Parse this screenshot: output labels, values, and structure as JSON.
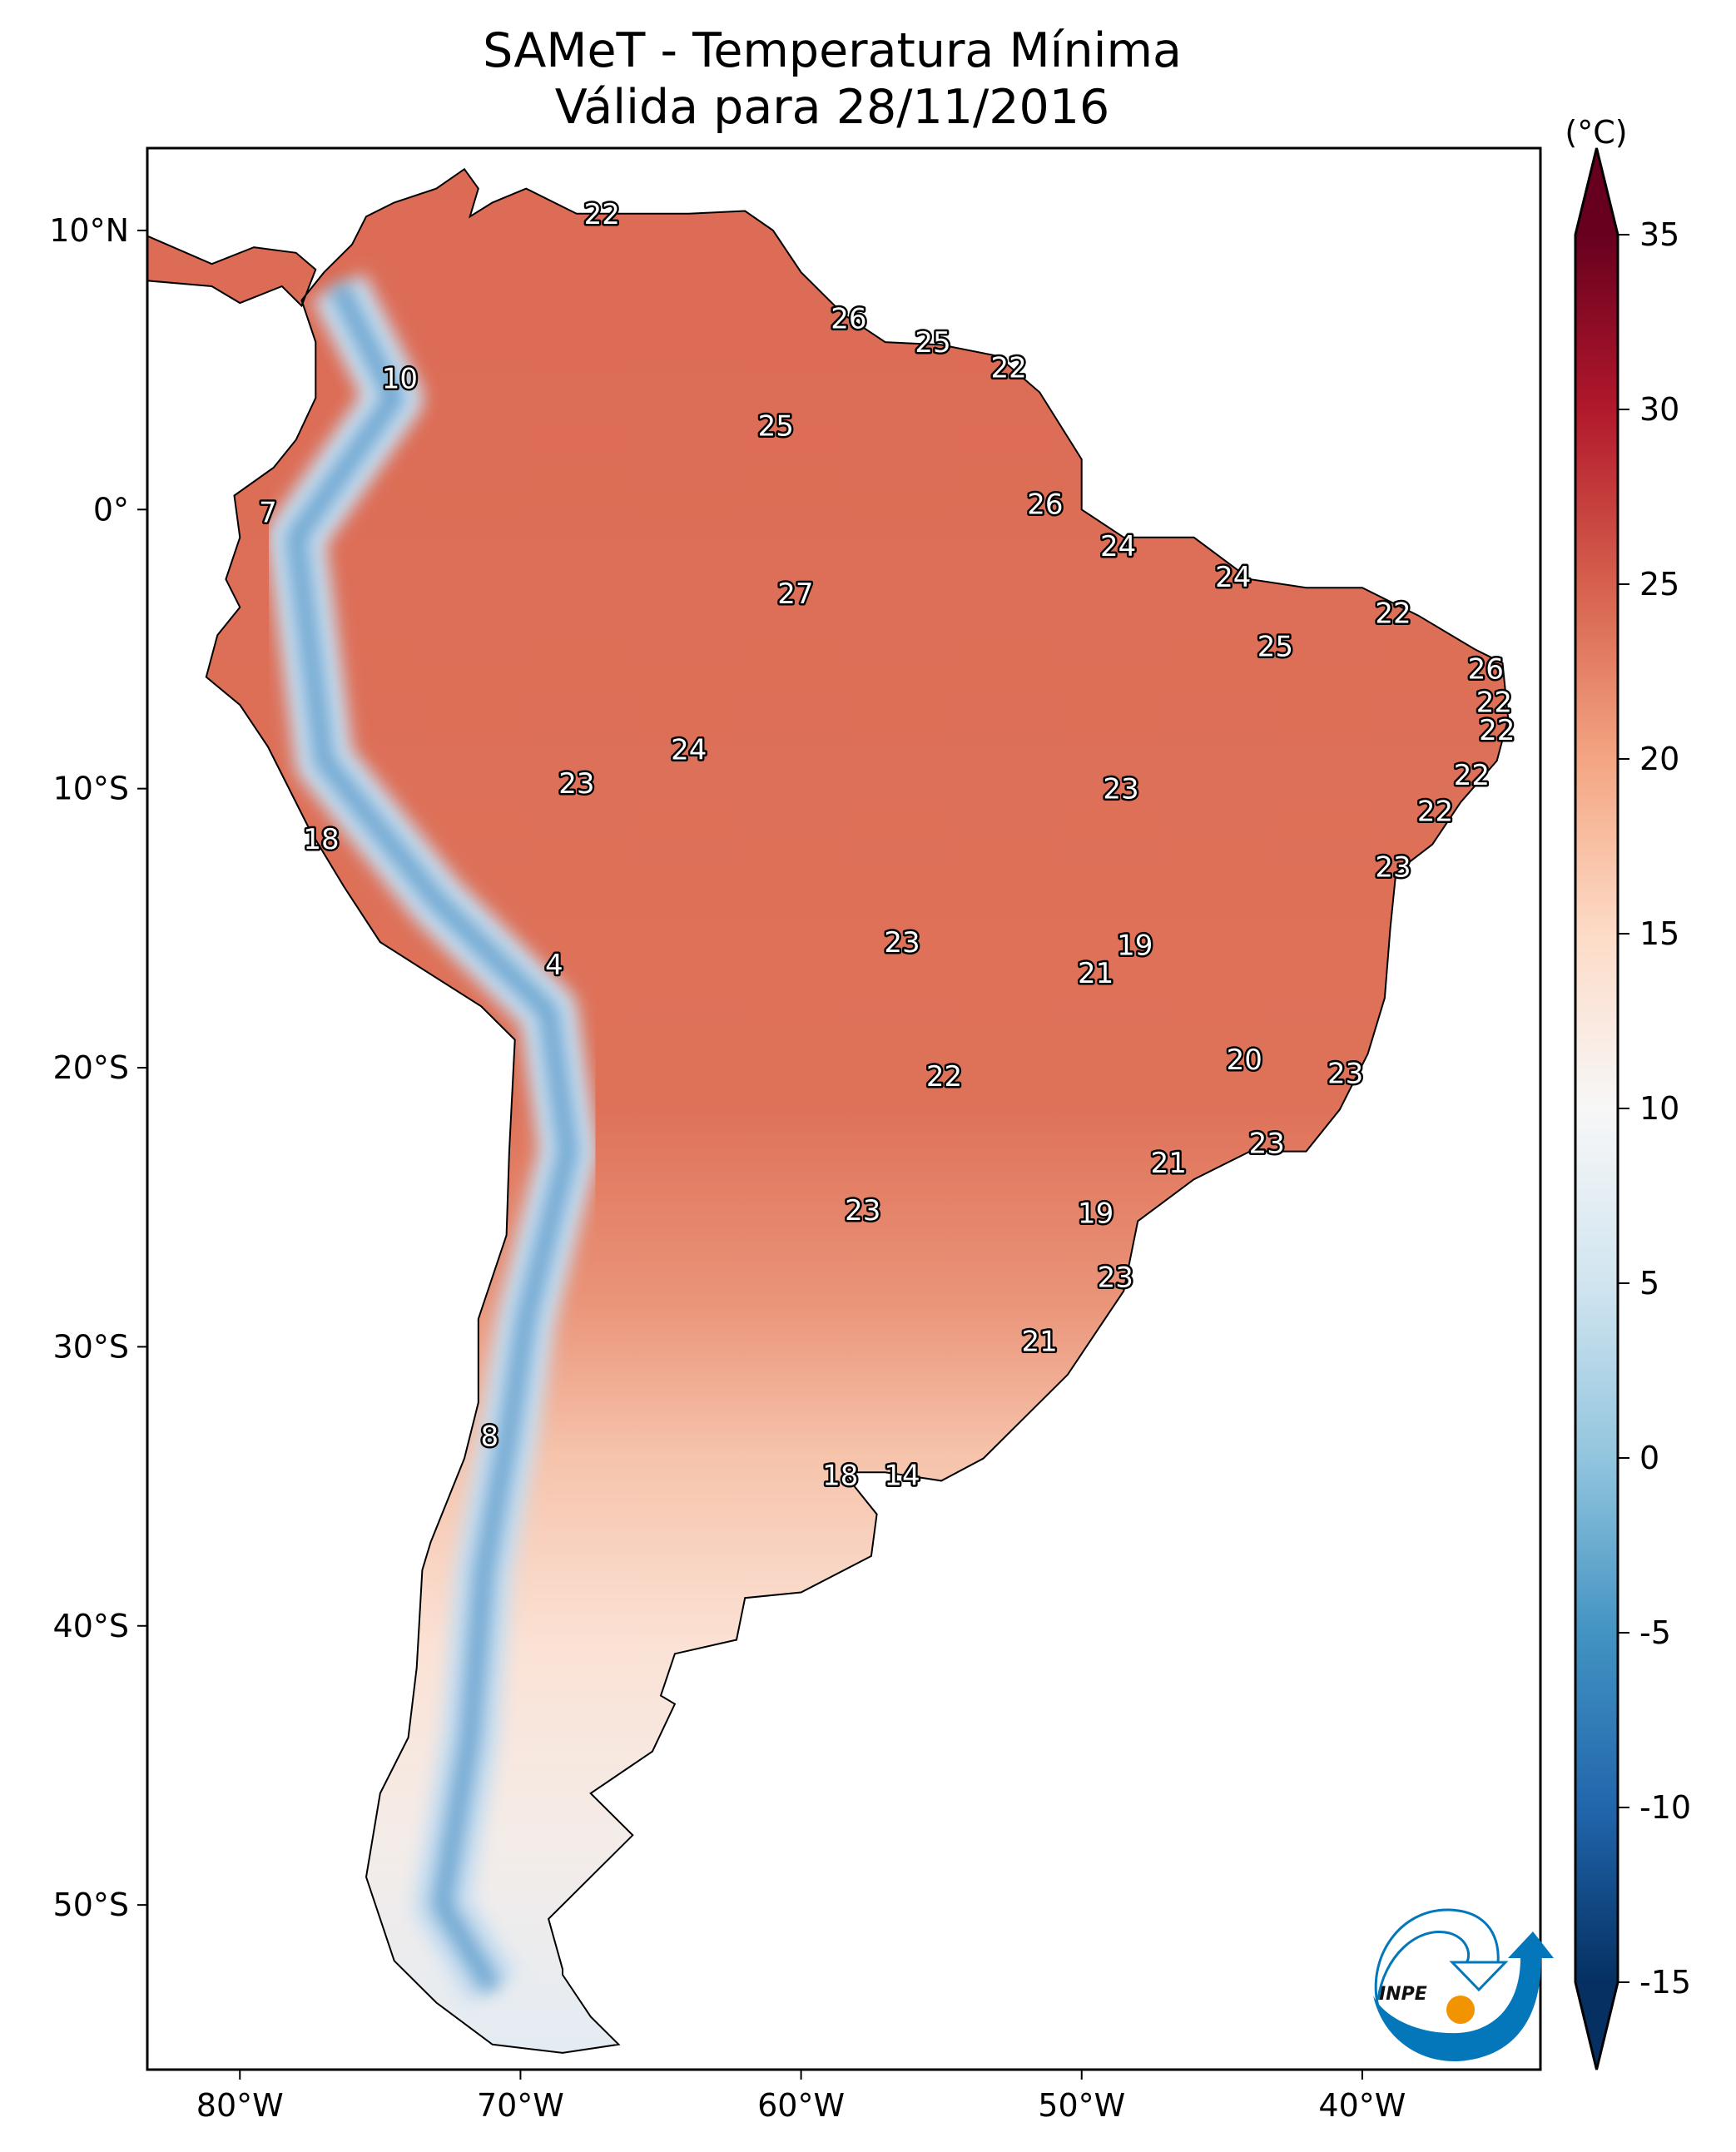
{
  "title": {
    "line1": "SAMeT - Temperatura Mínima",
    "line2": "Válida para 28/11/2016"
  },
  "map": {
    "extent": {
      "lon": [
        -83.3,
        -33.65
      ],
      "lat": [
        -55.9,
        12.95
      ]
    },
    "lon_ticks": [
      {
        "value": -80,
        "label": "80°W"
      },
      {
        "value": -70,
        "label": "70°W"
      },
      {
        "value": -60,
        "label": "60°W"
      },
      {
        "value": -50,
        "label": "50°W"
      },
      {
        "value": -40,
        "label": "40°W"
      }
    ],
    "lat_ticks": [
      {
        "value": 10,
        "label": "10°N"
      },
      {
        "value": 0,
        "label": "0°"
      },
      {
        "value": -10,
        "label": "10°S"
      },
      {
        "value": -20,
        "label": "20°S"
      },
      {
        "value": -30,
        "label": "30°S"
      },
      {
        "value": -40,
        "label": "40°S"
      },
      {
        "value": -50,
        "label": "50°S"
      }
    ],
    "stations": [
      {
        "lon": -67.1,
        "lat": 10.6,
        "value": "22"
      },
      {
        "lon": -58.3,
        "lat": 6.85,
        "value": "26"
      },
      {
        "lon": -55.3,
        "lat": 6.0,
        "value": "25"
      },
      {
        "lon": -52.6,
        "lat": 5.1,
        "value": "22"
      },
      {
        "lon": -74.3,
        "lat": 4.7,
        "value": "10"
      },
      {
        "lon": -60.9,
        "lat": 3.0,
        "value": "25"
      },
      {
        "lon": -51.3,
        "lat": 0.2,
        "value": "26"
      },
      {
        "lon": -79.0,
        "lat": -0.1,
        "value": "7"
      },
      {
        "lon": -48.7,
        "lat": -1.3,
        "value": "24"
      },
      {
        "lon": -44.6,
        "lat": -2.4,
        "value": "24"
      },
      {
        "lon": -60.2,
        "lat": -3.0,
        "value": "27"
      },
      {
        "lon": -38.9,
        "lat": -3.7,
        "value": "22"
      },
      {
        "lon": -43.1,
        "lat": -4.9,
        "value": "25"
      },
      {
        "lon": -35.6,
        "lat": -5.7,
        "value": "26"
      },
      {
        "lon": -35.3,
        "lat": -6.9,
        "value": "22"
      },
      {
        "lon": -35.2,
        "lat": -7.9,
        "value": "22"
      },
      {
        "lon": -64.0,
        "lat": -8.6,
        "value": "24"
      },
      {
        "lon": -36.1,
        "lat": -9.5,
        "value": "22"
      },
      {
        "lon": -68.0,
        "lat": -9.8,
        "value": "23"
      },
      {
        "lon": -48.6,
        "lat": -10.0,
        "value": "23"
      },
      {
        "lon": -37.4,
        "lat": -10.8,
        "value": "22"
      },
      {
        "lon": -77.1,
        "lat": -11.8,
        "value": "18"
      },
      {
        "lon": -38.9,
        "lat": -12.8,
        "value": "23"
      },
      {
        "lon": -56.4,
        "lat": -15.5,
        "value": "23"
      },
      {
        "lon": -48.1,
        "lat": -15.6,
        "value": "19"
      },
      {
        "lon": -68.8,
        "lat": -16.3,
        "value": "4"
      },
      {
        "lon": -49.5,
        "lat": -16.6,
        "value": "21"
      },
      {
        "lon": -44.2,
        "lat": -19.7,
        "value": "20"
      },
      {
        "lon": -40.6,
        "lat": -20.2,
        "value": "23"
      },
      {
        "lon": -54.9,
        "lat": -20.3,
        "value": "22"
      },
      {
        "lon": -43.4,
        "lat": -22.7,
        "value": "23"
      },
      {
        "lon": -46.9,
        "lat": -23.4,
        "value": "21"
      },
      {
        "lon": -57.8,
        "lat": -25.1,
        "value": "23"
      },
      {
        "lon": -49.5,
        "lat": -25.2,
        "value": "19"
      },
      {
        "lon": -48.8,
        "lat": -27.5,
        "value": "23"
      },
      {
        "lon": -51.5,
        "lat": -29.8,
        "value": "21"
      },
      {
        "lon": -71.1,
        "lat": -33.2,
        "value": "8"
      },
      {
        "lon": -58.6,
        "lat": -34.6,
        "value": "18"
      },
      {
        "lon": -56.4,
        "lat": -34.6,
        "value": "14"
      }
    ]
  },
  "colorbar": {
    "unit": "(°C)",
    "range": [
      -15,
      35
    ],
    "extend": "both",
    "colormap": "RdBu_r",
    "colors": [
      "#053061",
      "#2166ac",
      "#4393c3",
      "#92c5de",
      "#d1e5f0",
      "#f7f7f7",
      "#fddbc7",
      "#f4a582",
      "#d6604d",
      "#b2182b",
      "#67001f"
    ],
    "ticks": [
      {
        "value": 35,
        "label": "35"
      },
      {
        "value": 30,
        "label": "30"
      },
      {
        "value": 25,
        "label": "25"
      },
      {
        "value": 20,
        "label": "20"
      },
      {
        "value": 15,
        "label": "15"
      },
      {
        "value": 10,
        "label": "10"
      },
      {
        "value": 5,
        "label": "5"
      },
      {
        "value": 0,
        "label": "0"
      },
      {
        "value": -5,
        "label": "-5"
      },
      {
        "value": -10,
        "label": "-10"
      },
      {
        "value": -15,
        "label": "-15"
      }
    ]
  },
  "logo": {
    "text": "INPE",
    "blue": "#0377b9",
    "orange": "#f29400"
  }
}
